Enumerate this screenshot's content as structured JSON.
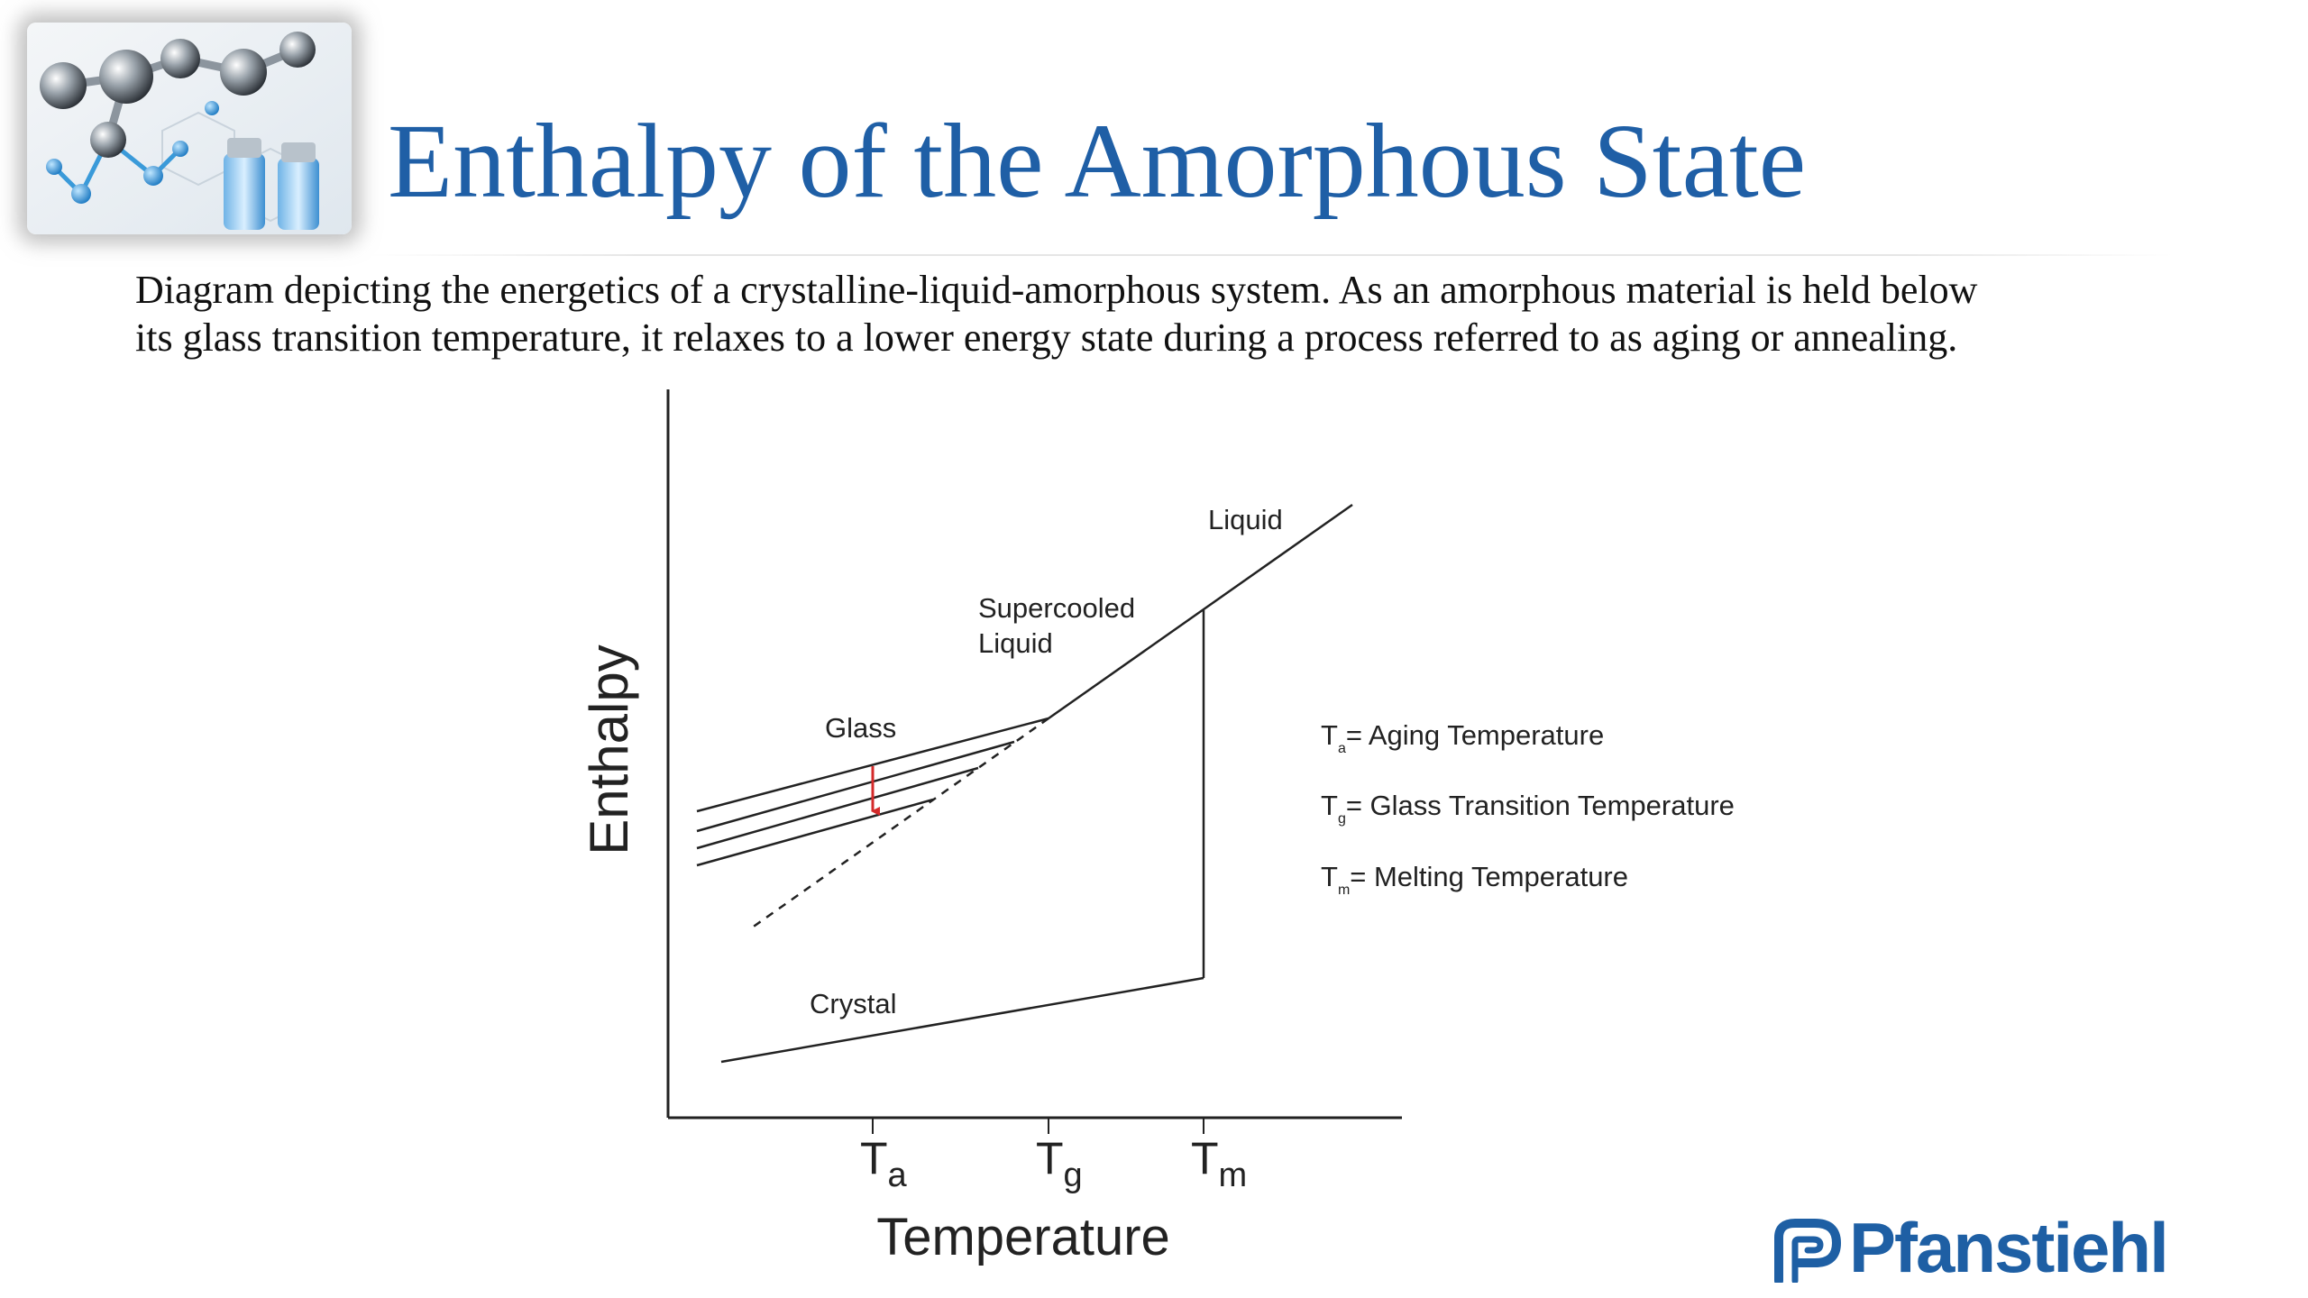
{
  "title": "Enthalpy of the Amorphous State",
  "description": {
    "line1": "Diagram depicting the energetics of a crystalline-liquid-amorphous system. As an amorphous material is held below",
    "line2": "its glass transition temperature, it relaxes to a lower energy state during a process referred to as aging or annealing."
  },
  "diagram": {
    "axis_y_label": "Enthalpy",
    "axis_x_label": "Temperature",
    "ticks": [
      {
        "main": "T",
        "sub": "a"
      },
      {
        "main": "T",
        "sub": "g"
      },
      {
        "main": "T",
        "sub": "m"
      }
    ],
    "curve_labels": {
      "liquid": "Liquid",
      "supercooled_line1": "Supercooled",
      "supercooled_line2": "Liquid",
      "glass": "Glass",
      "crystal": "Crystal"
    },
    "legend": [
      {
        "main": "T",
        "sub": "a",
        "text": "= Aging Temperature"
      },
      {
        "main": "T",
        "sub": "g",
        "text": "= Glass Transition Temperature"
      },
      {
        "main": "T",
        "sub": "m",
        "text": "= Melting Temperature"
      }
    ],
    "arrow_color": "#d42a2a",
    "line_color": "#222222"
  },
  "brand": {
    "name": "Pfanstiehl",
    "color": "#1e5fa4"
  },
  "title_color": "#1f5fa6"
}
